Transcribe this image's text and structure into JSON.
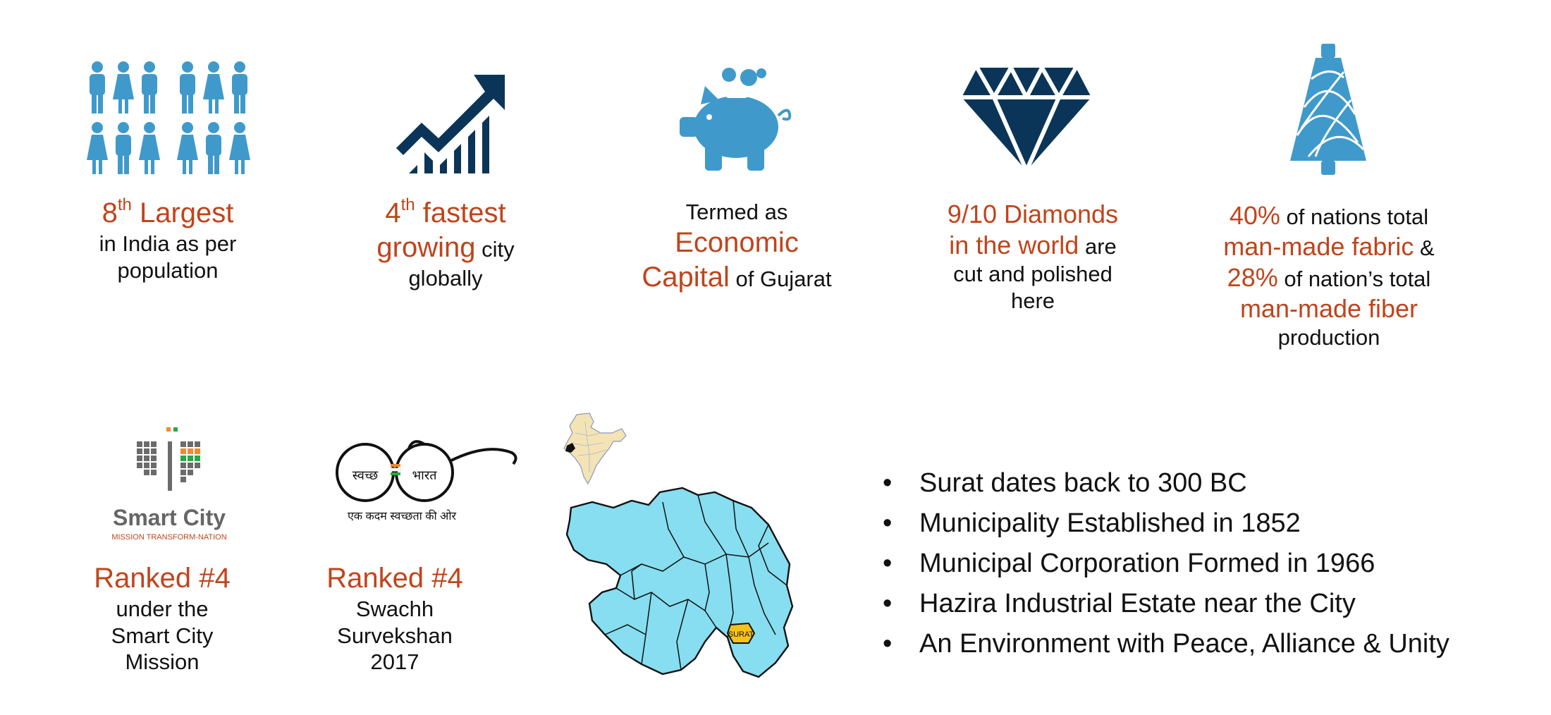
{
  "colors": {
    "accent": "#C0441B",
    "light_blue": "#3F9ACB",
    "dark_blue": "#0B3558",
    "map_fill": "#86DEF0",
    "map_highlight": "#F5C21B"
  },
  "top_stats": [
    {
      "icon": "people-icon",
      "hl_a": "8",
      "sup": "th",
      "hl_b": " Largest",
      "t1": "in India as per",
      "t2": "population"
    },
    {
      "icon": "growth-chart-icon",
      "hl_a": "4",
      "sup": "th",
      "hl_b": " fastest",
      "hl2": "growing",
      "t1": " city",
      "t2": "globally"
    },
    {
      "icon": "piggy-bank-icon",
      "t0": "Termed as",
      "hl1": "Economic",
      "hl2": "Capital",
      "t1": " of Gujarat"
    },
    {
      "icon": "diamond-icon",
      "hl1": "9/10 Diamonds",
      "hl2": "in the world",
      "t1": " are",
      "t2": "cut and polished",
      "t3": "here"
    },
    {
      "icon": "thread-spool-icon",
      "hl1": "40%",
      "t1": " of nations total",
      "hl2": "man-made fabric",
      "t2": " &",
      "hl3": "28%",
      "t3": " of nation’s total",
      "hl4": "man-made fiber",
      "t4": "production"
    }
  ],
  "bottom_stats": [
    {
      "logo_text": "Smart City",
      "logo_sub": "MISSION TRANSFORM-NATION",
      "rank": "Ranked #4",
      "t1": "under the",
      "t2": "Smart City",
      "t3": "Mission"
    },
    {
      "logo_word1": "स्वच्छ",
      "logo_word2": "भारत",
      "logo_tag": "एक कदम स्वच्छता की ओर",
      "rank": "Ranked #4",
      "t1": "Swachh",
      "t2": "Survekshan",
      "t3": "2017"
    }
  ],
  "map": {
    "highlight_label": "SURAT"
  },
  "bullets": [
    "Surat dates back to 300 BC",
    "Municipality Established in 1852",
    "Municipal Corporation Formed in 1966",
    "Hazira Industrial Estate near the City",
    "An Environment with Peace, Alliance & Unity"
  ],
  "bullet_symbol": "•"
}
